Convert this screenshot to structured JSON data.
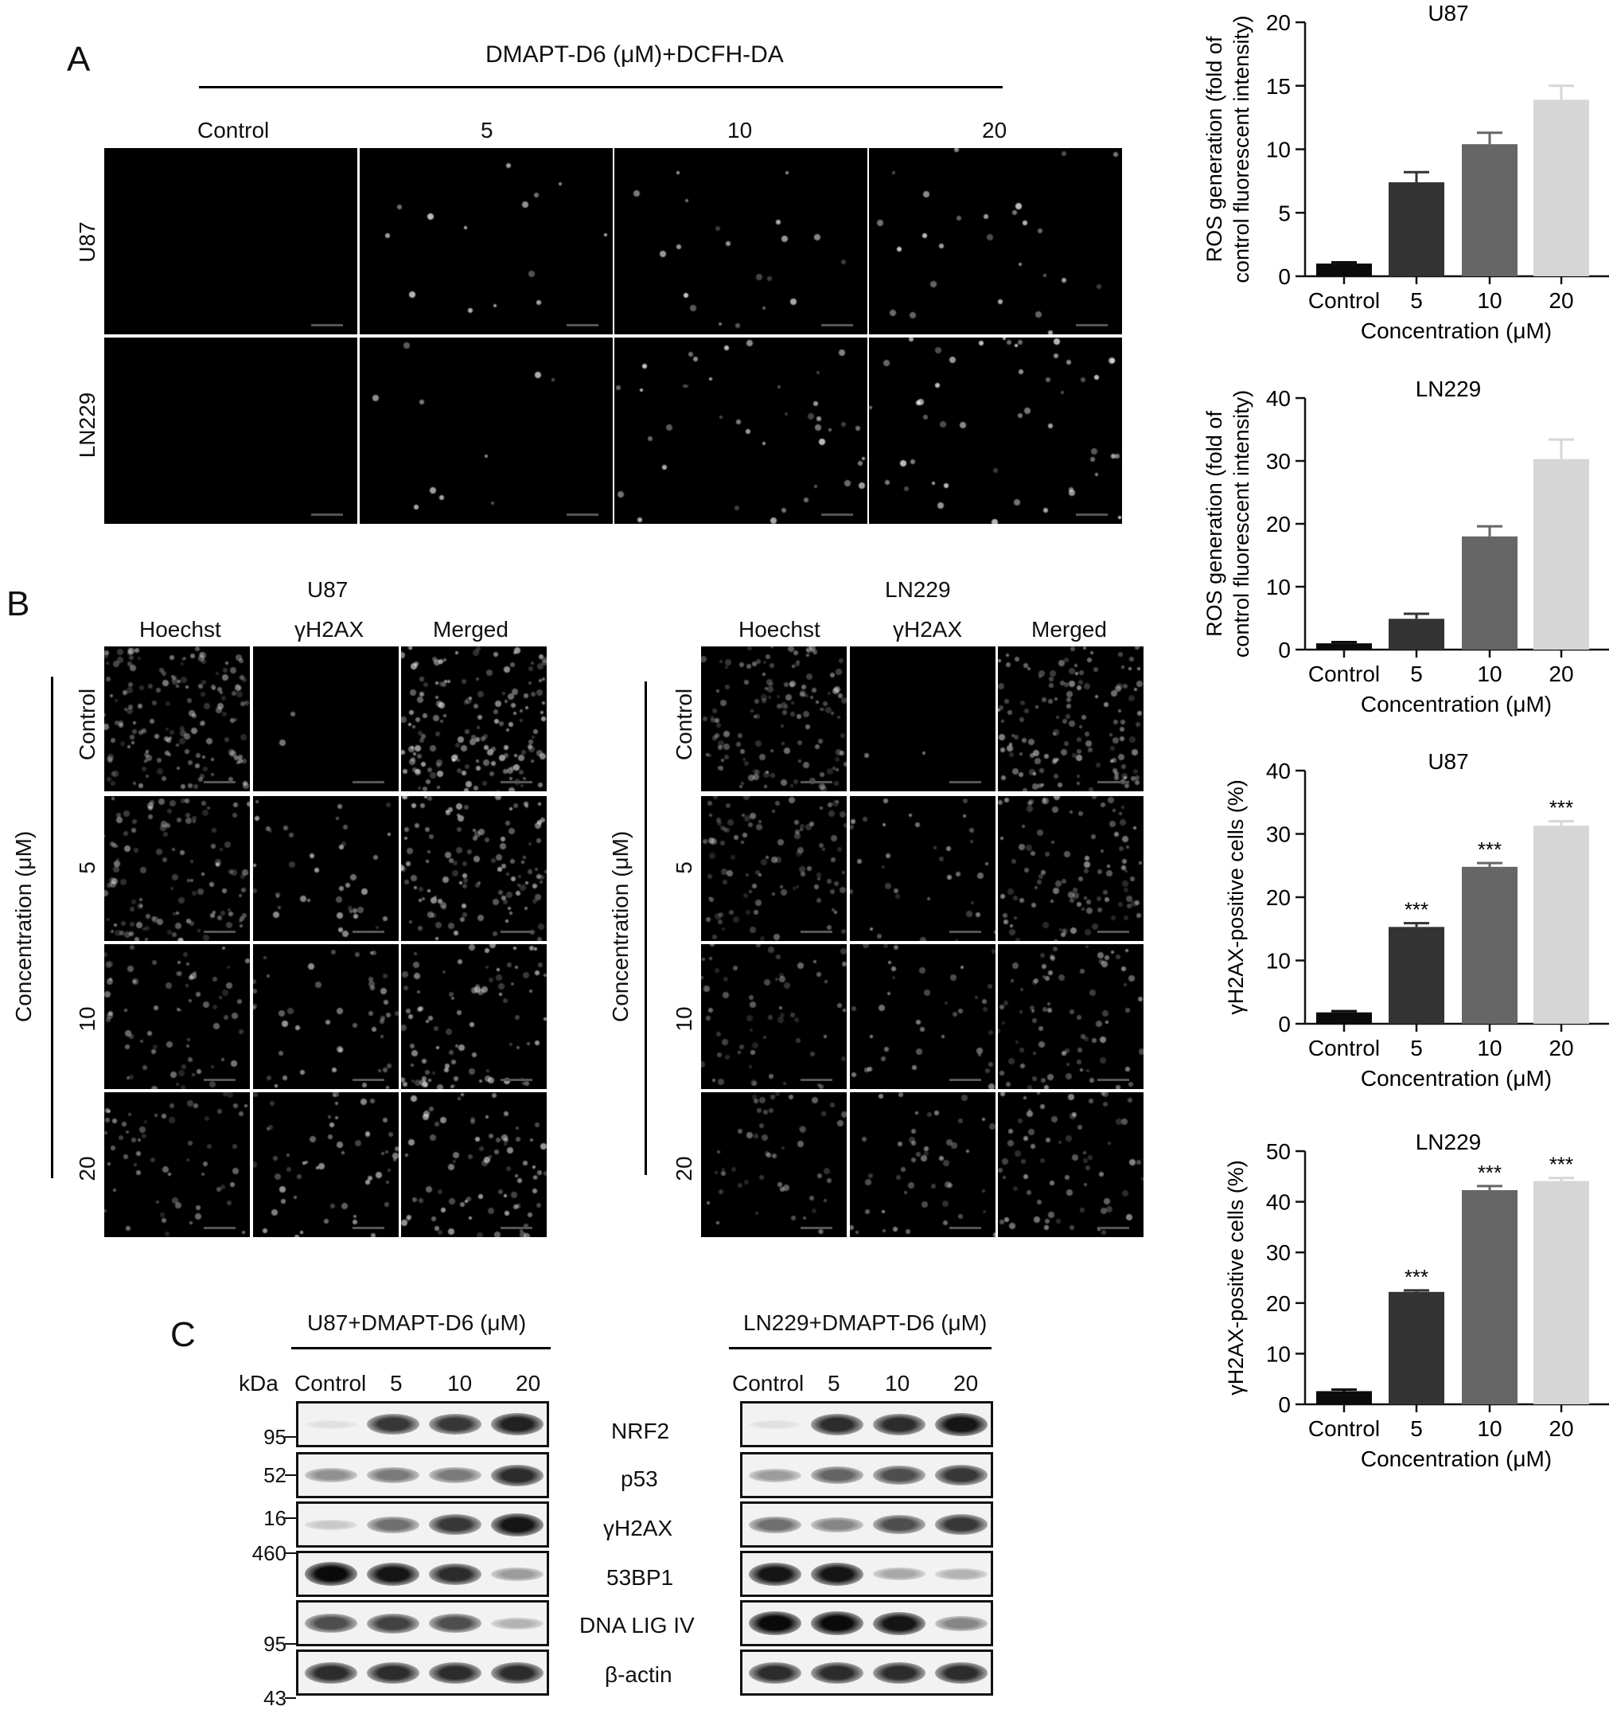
{
  "panelA": {
    "letter": "A",
    "header": "DMAPT-D6 (μM)+DCFH-DA",
    "columns": [
      "Control",
      "5",
      "10",
      "20"
    ],
    "rows": [
      "U87",
      "LN229"
    ]
  },
  "panelB": {
    "letter": "B",
    "groups": [
      {
        "title": "U87",
        "columns": [
          "Hoechst",
          "γH2AX",
          "Merged"
        ]
      },
      {
        "title": "LN229",
        "columns": [
          "Hoechst",
          "γH2AX",
          "Merged"
        ]
      }
    ],
    "row_axis_label": "Concentration (μM)",
    "rows": [
      "Control",
      "5",
      "10",
      "20"
    ]
  },
  "panelC": {
    "letter": "C",
    "groups": [
      {
        "title": "U87+DMAPT-D6 (μM)",
        "lanes": [
          "Control",
          "5",
          "10",
          "20"
        ]
      },
      {
        "title": "LN229+DMAPT-D6 (μM)",
        "lanes": [
          "Control",
          "5",
          "10",
          "20"
        ]
      }
    ],
    "kda_label": "kDa",
    "mw_markers": [
      "95",
      "52",
      "16",
      "460",
      "95",
      "43"
    ],
    "proteins": [
      "NRF2",
      "p53",
      "γH2AX",
      "53BP1",
      "DNA LIG IV",
      "β-actin"
    ],
    "band_intensity": {
      "U87": [
        [
          0.05,
          0.8,
          0.8,
          0.9
        ],
        [
          0.4,
          0.5,
          0.5,
          0.85
        ],
        [
          0.15,
          0.55,
          0.8,
          0.95
        ],
        [
          1.0,
          0.95,
          0.85,
          0.35
        ],
        [
          0.7,
          0.75,
          0.7,
          0.25
        ],
        [
          0.85,
          0.85,
          0.85,
          0.85
        ]
      ],
      "LN229": [
        [
          0.05,
          0.85,
          0.85,
          0.95
        ],
        [
          0.35,
          0.6,
          0.7,
          0.8
        ],
        [
          0.55,
          0.45,
          0.7,
          0.8
        ],
        [
          0.95,
          0.95,
          0.3,
          0.25
        ],
        [
          1.0,
          1.0,
          0.95,
          0.45
        ],
        [
          0.85,
          0.85,
          0.85,
          0.85
        ]
      ]
    }
  },
  "chart_data": [
    {
      "type": "bar",
      "title": "U87",
      "xlabel": "Concentration (μM)",
      "ylabel": "ROS generation (fold of control fluorescent intensity)",
      "ylabel_lines": [
        "ROS generation (fold of",
        "control fluorescent intensity)"
      ],
      "categories": [
        "Control",
        "5",
        "10",
        "20"
      ],
      "values": [
        1.0,
        7.4,
        10.4,
        13.9
      ],
      "errors": [
        0.1,
        0.8,
        0.9,
        1.1
      ],
      "annotations": [
        "",
        "",
        "",
        ""
      ],
      "ylim": [
        0,
        20
      ],
      "yticks": [
        0,
        5,
        10,
        15,
        20
      ],
      "colors": [
        "#0b0b0b",
        "#333333",
        "#666666",
        "#d6d6d6"
      ]
    },
    {
      "type": "bar",
      "title": "LN229",
      "xlabel": "Concentration (μM)",
      "ylabel": "ROS generation (fold of control fluorescent intensity)",
      "ylabel_lines": [
        "ROS generation (fold of",
        "control fluorescent intensity)"
      ],
      "categories": [
        "Control",
        "5",
        "10",
        "20"
      ],
      "values": [
        1.0,
        4.9,
        18.0,
        30.3
      ],
      "errors": [
        0.2,
        0.8,
        1.6,
        3.1
      ],
      "annotations": [
        "",
        "",
        "",
        ""
      ],
      "ylim": [
        0,
        40
      ],
      "yticks": [
        0,
        10,
        20,
        30,
        40
      ],
      "colors": [
        "#0b0b0b",
        "#333333",
        "#666666",
        "#d6d6d6"
      ]
    },
    {
      "type": "bar",
      "title": "U87",
      "xlabel": "Concentration (μM)",
      "ylabel": "γH2AX-positive cells (%)",
      "ylabel_lines": [
        "γH2AX-positive cells (%)"
      ],
      "categories": [
        "Control",
        "5",
        "10",
        "20"
      ],
      "values": [
        1.8,
        15.3,
        24.8,
        31.3
      ],
      "errors": [
        0.2,
        0.6,
        0.6,
        0.7
      ],
      "annotations": [
        "",
        "***",
        "***",
        "***"
      ],
      "ylim": [
        0,
        40
      ],
      "yticks": [
        0,
        10,
        20,
        30,
        40
      ],
      "colors": [
        "#0b0b0b",
        "#333333",
        "#666666",
        "#d6d6d6"
      ]
    },
    {
      "type": "bar",
      "title": "LN229",
      "xlabel": "Concentration (μM)",
      "ylabel": "γH2AX-positive cells (%)",
      "ylabel_lines": [
        "γH2AX-positive cells (%)"
      ],
      "categories": [
        "Control",
        "5",
        "10",
        "20"
      ],
      "values": [
        2.6,
        22.2,
        42.3,
        44.1
      ],
      "errors": [
        0.3,
        0.3,
        0.8,
        0.6
      ],
      "annotations": [
        "",
        "***",
        "***",
        "***"
      ],
      "ylim": [
        0,
        50
      ],
      "yticks": [
        0,
        10,
        20,
        30,
        40,
        50
      ],
      "colors": [
        "#0b0b0b",
        "#333333",
        "#666666",
        "#d6d6d6"
      ]
    }
  ]
}
